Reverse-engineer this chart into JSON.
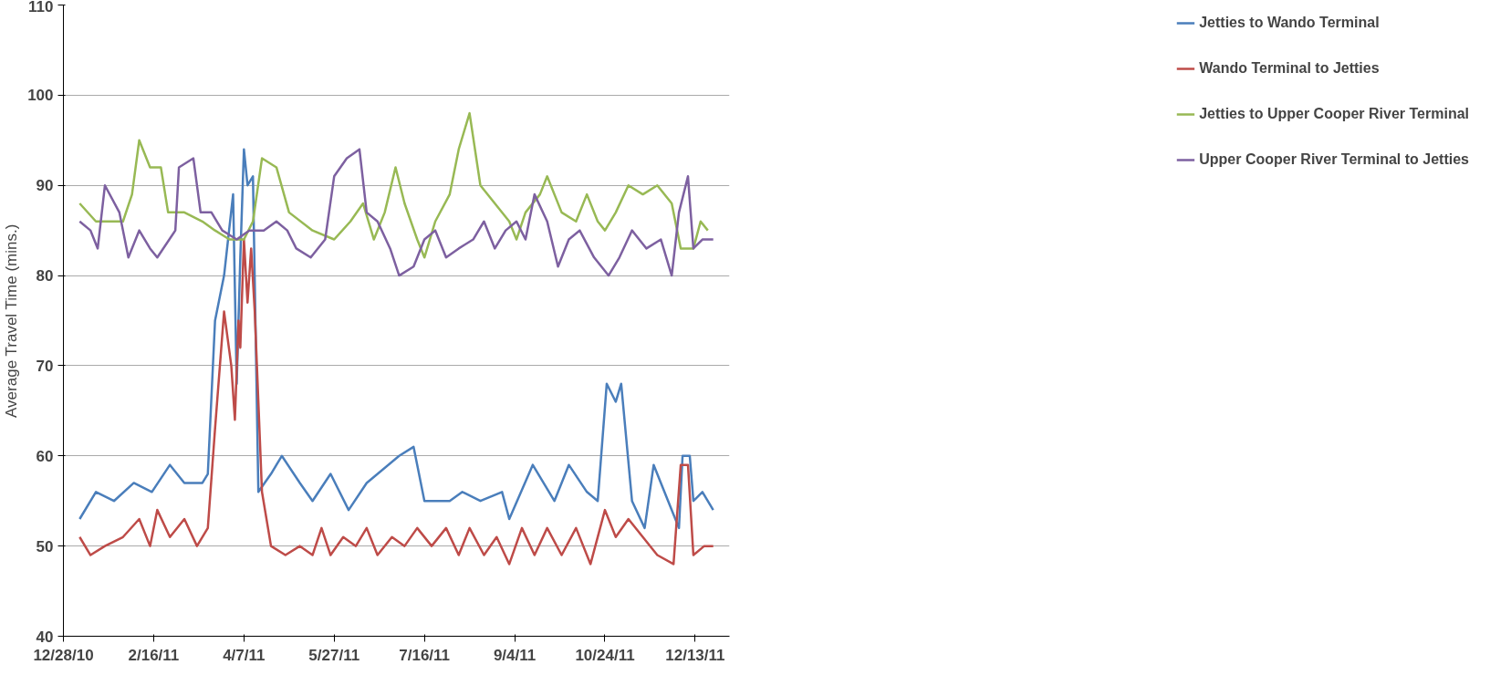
{
  "chart_data": {
    "type": "line",
    "ylabel": "Average Travel Time (mins.)",
    "xlim": [
      "2010-12-28",
      "2012-01-01"
    ],
    "xticks": [
      {
        "value": "2010-12-28",
        "label": "12/28/10"
      },
      {
        "value": "2011-02-16",
        "label": "2/16/11"
      },
      {
        "value": "2011-04-07",
        "label": "4/7/11"
      },
      {
        "value": "2011-05-27",
        "label": "5/27/11"
      },
      {
        "value": "2011-07-16",
        "label": "7/16/11"
      },
      {
        "value": "2011-09-04",
        "label": "9/4/11"
      },
      {
        "value": "2011-10-24",
        "label": "10/24/11"
      },
      {
        "value": "2011-12-13",
        "label": "12/13/11"
      }
    ],
    "ylim": [
      40,
      110
    ],
    "yticks": [
      40,
      50,
      60,
      70,
      80,
      90,
      100,
      110
    ],
    "grid": "y",
    "legend": "right",
    "series": [
      {
        "name": "Jetties to Wando Terminal",
        "color": "#4a7ebb",
        "x": [
          "2011-01-06",
          "2011-01-15",
          "2011-01-25",
          "2011-02-05",
          "2011-02-15",
          "2011-02-25",
          "2011-03-05",
          "2011-03-15",
          "2011-03-18",
          "2011-03-22",
          "2011-03-27",
          "2011-04-01",
          "2011-04-03",
          "2011-04-05",
          "2011-04-07",
          "2011-04-09",
          "2011-04-12",
          "2011-04-15",
          "2011-04-22",
          "2011-04-28",
          "2011-05-08",
          "2011-05-15",
          "2011-05-25",
          "2011-06-04",
          "2011-06-14",
          "2011-07-02",
          "2011-07-10",
          "2011-07-16",
          "2011-07-30",
          "2011-08-06",
          "2011-08-16",
          "2011-08-28",
          "2011-09-01",
          "2011-09-14",
          "2011-09-26",
          "2011-10-04",
          "2011-10-14",
          "2011-10-20",
          "2011-10-25",
          "2011-10-30",
          "2011-11-02",
          "2011-11-08",
          "2011-11-15",
          "2011-11-20",
          "2011-11-28",
          "2011-12-04",
          "2011-12-06",
          "2011-12-10",
          "2011-12-12",
          "2011-12-17",
          "2011-12-23"
        ],
        "values": [
          53,
          56,
          55,
          57,
          56,
          59,
          57,
          57,
          58,
          75,
          80,
          89,
          68,
          82,
          94,
          90,
          91,
          56,
          58,
          60,
          57,
          55,
          58,
          54,
          57,
          60,
          61,
          55,
          55,
          56,
          55,
          56,
          53,
          59,
          55,
          59,
          56,
          55,
          68,
          66,
          68,
          55,
          52,
          59,
          55,
          52,
          60,
          60,
          55,
          56,
          54
        ]
      },
      {
        "name": "Wando Terminal to Jetties",
        "color": "#be4b48",
        "x": [
          "2011-01-06",
          "2011-01-12",
          "2011-01-20",
          "2011-01-30",
          "2011-02-08",
          "2011-02-14",
          "2011-02-18",
          "2011-02-25",
          "2011-03-05",
          "2011-03-12",
          "2011-03-18",
          "2011-03-22",
          "2011-03-27",
          "2011-03-31",
          "2011-04-02",
          "2011-04-04",
          "2011-04-05",
          "2011-04-07",
          "2011-04-09",
          "2011-04-11",
          "2011-04-13",
          "2011-04-17",
          "2011-04-22",
          "2011-04-30",
          "2011-05-08",
          "2011-05-15",
          "2011-05-20",
          "2011-05-25",
          "2011-06-01",
          "2011-06-08",
          "2011-06-14",
          "2011-06-20",
          "2011-06-28",
          "2011-07-05",
          "2011-07-12",
          "2011-07-20",
          "2011-07-28",
          "2011-08-04",
          "2011-08-10",
          "2011-08-18",
          "2011-08-25",
          "2011-09-01",
          "2011-09-08",
          "2011-09-15",
          "2011-09-22",
          "2011-09-30",
          "2011-10-08",
          "2011-10-16",
          "2011-10-24",
          "2011-10-30",
          "2011-11-06",
          "2011-11-14",
          "2011-11-22",
          "2011-12-01",
          "2011-12-05",
          "2011-12-09",
          "2011-12-12",
          "2011-12-18",
          "2011-12-23"
        ],
        "values": [
          51,
          49,
          50,
          51,
          53,
          50,
          54,
          51,
          53,
          50,
          52,
          63,
          76,
          70,
          64,
          75,
          72,
          84,
          77,
          83,
          76,
          56,
          50,
          49,
          50,
          49,
          52,
          49,
          51,
          50,
          52,
          49,
          51,
          50,
          52,
          50,
          52,
          49,
          52,
          49,
          51,
          48,
          52,
          49,
          52,
          49,
          52,
          48,
          54,
          51,
          53,
          51,
          49,
          48,
          59,
          59,
          49,
          50,
          50
        ]
      },
      {
        "name": "Jetties to Upper Cooper River Terminal",
        "color": "#98b954",
        "x": [
          "2011-01-06",
          "2011-01-15",
          "2011-01-30",
          "2011-02-04",
          "2011-02-08",
          "2011-02-14",
          "2011-02-20",
          "2011-02-24",
          "2011-03-05",
          "2011-03-15",
          "2011-03-22",
          "2011-03-30",
          "2011-04-07",
          "2011-04-12",
          "2011-04-17",
          "2011-04-25",
          "2011-05-02",
          "2011-05-15",
          "2011-05-27",
          "2011-06-05",
          "2011-06-12",
          "2011-06-18",
          "2011-06-24",
          "2011-06-30",
          "2011-07-05",
          "2011-07-12",
          "2011-07-16",
          "2011-07-22",
          "2011-07-30",
          "2011-08-04",
          "2011-08-10",
          "2011-08-16",
          "2011-08-24",
          "2011-09-01",
          "2011-09-05",
          "2011-09-10",
          "2011-09-18",
          "2011-09-22",
          "2011-09-30",
          "2011-10-08",
          "2011-10-14",
          "2011-10-20",
          "2011-10-24",
          "2011-10-30",
          "2011-11-06",
          "2011-11-14",
          "2011-11-22",
          "2011-11-30",
          "2011-12-05",
          "2011-12-12",
          "2011-12-16",
          "2011-12-20"
        ],
        "values": [
          88,
          86,
          86,
          89,
          95,
          92,
          92,
          87,
          87,
          86,
          85,
          84,
          84,
          86,
          93,
          92,
          87,
          85,
          84,
          86,
          88,
          84,
          87,
          92,
          88,
          84,
          82,
          86,
          89,
          94,
          98,
          90,
          88,
          86,
          84,
          87,
          89,
          91,
          87,
          86,
          89,
          86,
          85,
          87,
          90,
          89,
          90,
          88,
          83,
          83,
          86,
          85
        ]
      },
      {
        "name": "Upper Cooper River Terminal to Jetties",
        "color": "#7d60a0",
        "x": [
          "2011-01-06",
          "2011-01-12",
          "2011-01-16",
          "2011-01-20",
          "2011-01-28",
          "2011-02-02",
          "2011-02-08",
          "2011-02-14",
          "2011-02-18",
          "2011-02-28",
          "2011-03-02",
          "2011-03-10",
          "2011-03-14",
          "2011-03-20",
          "2011-03-26",
          "2011-04-03",
          "2011-04-10",
          "2011-04-18",
          "2011-04-25",
          "2011-05-01",
          "2011-05-06",
          "2011-05-14",
          "2011-05-22",
          "2011-05-27",
          "2011-06-03",
          "2011-06-10",
          "2011-06-14",
          "2011-06-20",
          "2011-06-27",
          "2011-07-02",
          "2011-07-10",
          "2011-07-16",
          "2011-07-22",
          "2011-07-28",
          "2011-08-04",
          "2011-08-12",
          "2011-08-18",
          "2011-08-24",
          "2011-08-30",
          "2011-09-05",
          "2011-09-10",
          "2011-09-15",
          "2011-09-22",
          "2011-09-28",
          "2011-10-04",
          "2011-10-10",
          "2011-10-18",
          "2011-10-26",
          "2011-11-01",
          "2011-11-08",
          "2011-11-16",
          "2011-11-24",
          "2011-11-30",
          "2011-12-04",
          "2011-12-09",
          "2011-12-12",
          "2011-12-17",
          "2011-12-23"
        ],
        "values": [
          86,
          85,
          83,
          90,
          87,
          82,
          85,
          83,
          82,
          85,
          92,
          93,
          87,
          87,
          85,
          84,
          85,
          85,
          86,
          85,
          83,
          82,
          84,
          91,
          93,
          94,
          87,
          86,
          83,
          80,
          81,
          84,
          85,
          82,
          83,
          84,
          86,
          83,
          85,
          86,
          84,
          89,
          86,
          81,
          84,
          85,
          82,
          80,
          82,
          85,
          83,
          84,
          80,
          87,
          91,
          83,
          84,
          84
        ]
      }
    ]
  }
}
